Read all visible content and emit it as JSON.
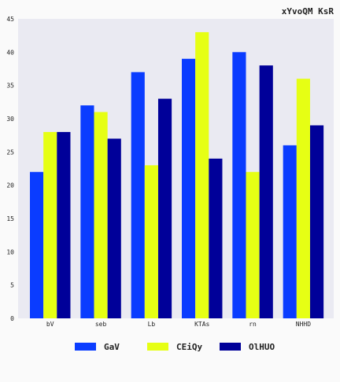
{
  "chart_data": {
    "type": "bar",
    "title": "xYvoQM KsR",
    "categories": [
      "bV",
      "seb",
      "Lb",
      "KTAs",
      "rn",
      "NHHD"
    ],
    "series": [
      {
        "name": "GaV",
        "color": "#0a3cff",
        "values": [
          22,
          32,
          37,
          39,
          40,
          26
        ]
      },
      {
        "name": "CEiQy",
        "color": "#e6ff14",
        "values": [
          28,
          31,
          23,
          43,
          22,
          36
        ]
      },
      {
        "name": "OlHUO",
        "color": "#000099",
        "values": [
          28,
          27,
          33,
          24,
          38,
          29
        ]
      }
    ],
    "yticks": [
      0,
      5,
      10,
      15,
      20,
      25,
      30,
      35,
      40,
      45
    ],
    "ylim": [
      0,
      45
    ],
    "xlabel": "",
    "ylabel": "",
    "grid": false,
    "legend_position": "bottom-center",
    "plot_background": "#eaeaf2"
  }
}
